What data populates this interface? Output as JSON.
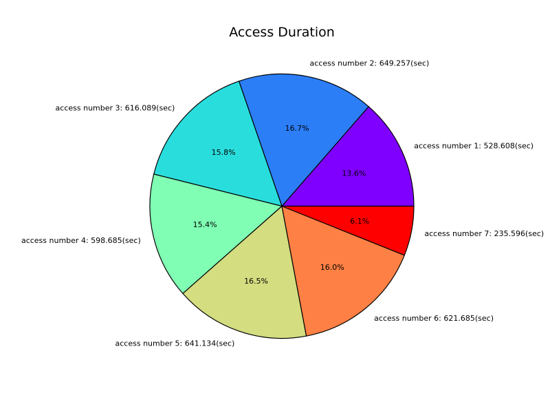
{
  "chart_data": {
    "type": "pie",
    "title": "Access Duration",
    "start_angle_deg": 0,
    "direction": "counterclockwise",
    "slices": [
      {
        "label": "access number 1: 528.608(sec)",
        "value": 528.608,
        "percent": "13.6%",
        "color": "#8000ff"
      },
      {
        "label": "access number 2: 649.257(sec)",
        "value": 649.257,
        "percent": "16.7%",
        "color": "#2c7ef7"
      },
      {
        "label": "access number 3: 616.089(sec)",
        "value": 616.089,
        "percent": "15.8%",
        "color": "#2adddd"
      },
      {
        "label": "access number 4: 598.685(sec)",
        "value": 598.685,
        "percent": "15.4%",
        "color": "#80ffb4"
      },
      {
        "label": "access number 5: 641.134(sec)",
        "value": 641.134,
        "percent": "16.5%",
        "color": "#d4dd80"
      },
      {
        "label": "access number 6: 621.685(sec)",
        "value": 621.685,
        "percent": "16.0%",
        "color": "#ff8044"
      },
      {
        "label": "access number 7: 235.596(sec)",
        "value": 235.596,
        "percent": "6.1%",
        "color": "#ff0000"
      }
    ]
  }
}
